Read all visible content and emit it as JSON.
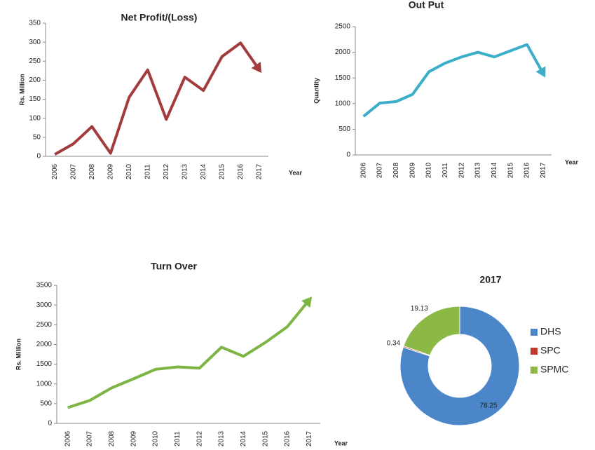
{
  "chart_data": [
    {
      "type": "line",
      "title": "Net Profit/(Loss)",
      "ylabel": "Rs. Million",
      "xlabel": "Year",
      "categories": [
        "2006",
        "2007",
        "2008",
        "2009",
        "2010",
        "2011",
        "2012",
        "2013",
        "2014",
        "2015",
        "2016",
        "2017"
      ],
      "values": [
        5,
        33,
        78,
        8,
        155,
        227,
        97,
        208,
        173,
        262,
        298,
        228
      ],
      "color": "#a23b3c",
      "ylim": [
        0,
        350
      ],
      "yticks": [
        0,
        50,
        100,
        150,
        200,
        250,
        300,
        350
      ]
    },
    {
      "type": "line",
      "title": "Out Put",
      "ylabel": "Quantity",
      "xlabel": "Year",
      "categories": [
        "2006",
        "2007",
        "2008",
        "2009",
        "2010",
        "2011",
        "2012",
        "2013",
        "2014",
        "2015",
        "2016",
        "2017"
      ],
      "values": [
        750,
        1010,
        1040,
        1180,
        1620,
        1790,
        1910,
        2000,
        1910,
        2030,
        2150,
        1580
      ],
      "color": "#3bafc9",
      "ylim": [
        0,
        2500
      ],
      "yticks": [
        0,
        500,
        1000,
        1500,
        2000,
        2500
      ]
    },
    {
      "type": "line",
      "title": "Turn Over",
      "ylabel": "Rs. Million",
      "xlabel": "Year",
      "categories": [
        "2006",
        "2007",
        "2008",
        "2009",
        "2010",
        "2011",
        "2012",
        "2013",
        "2014",
        "2015",
        "2016",
        "2017"
      ],
      "values": [
        400,
        580,
        900,
        1130,
        1370,
        1430,
        1400,
        1930,
        1700,
        2050,
        2450,
        3130
      ],
      "color": "#7db544",
      "ylim": [
        0,
        3500
      ],
      "yticks": [
        0,
        500,
        1000,
        1500,
        2000,
        2500,
        3000,
        3500
      ]
    },
    {
      "type": "pie",
      "title": "2017",
      "categories": [
        "DHS",
        "SPC",
        "SPMC"
      ],
      "values": [
        78.25,
        0.34,
        19.13
      ],
      "colors": [
        "#4a86c8",
        "#c0392b",
        "#8cb845"
      ],
      "legend": "right"
    }
  ]
}
